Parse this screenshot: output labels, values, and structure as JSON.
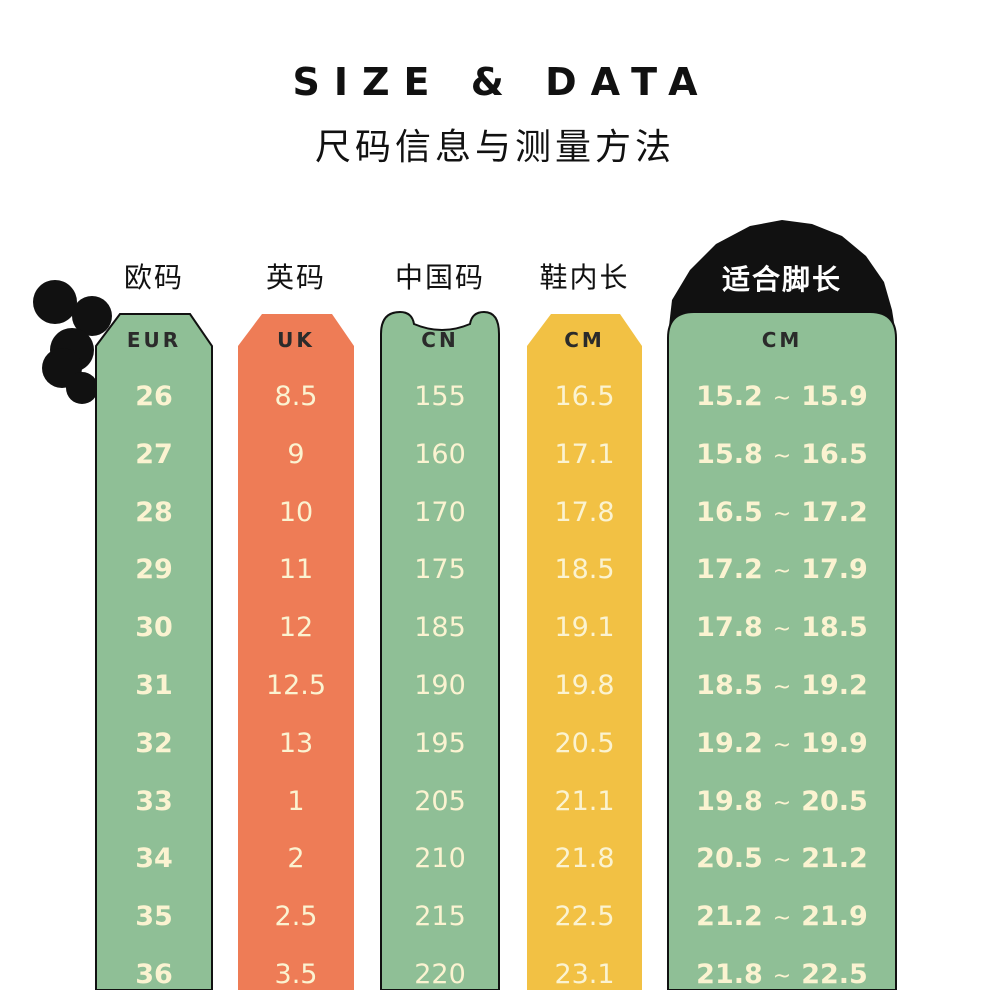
{
  "header": {
    "title_en": "SIZE & DATA",
    "title_cn": "尺码信息与测量方法"
  },
  "colors": {
    "green": "#8fbf96",
    "orange": "#ee7c56",
    "yellow": "#f2c144",
    "black": "#111111",
    "cell_text": "#fbf3d1"
  },
  "columns": {
    "eur": {
      "label": "欧码",
      "unit": "EUR",
      "values": [
        "26",
        "27",
        "28",
        "29",
        "30",
        "31",
        "32",
        "33",
        "34",
        "35",
        "36"
      ]
    },
    "uk": {
      "label": "英码",
      "unit": "UK",
      "values": [
        "8.5",
        "9",
        "10",
        "11",
        "12",
        "12.5",
        "13",
        "1",
        "2",
        "2.5",
        "3.5"
      ]
    },
    "cn": {
      "label": "中国码",
      "unit": "CN",
      "values": [
        "155",
        "160",
        "170",
        "175",
        "185",
        "190",
        "195",
        "205",
        "210",
        "215",
        "220"
      ]
    },
    "insole": {
      "label": "鞋内长",
      "unit": "CM",
      "values": [
        "16.5",
        "17.1",
        "17.8",
        "18.5",
        "19.1",
        "19.8",
        "20.5",
        "21.1",
        "21.8",
        "22.5",
        "23.1"
      ]
    },
    "fit": {
      "label": "适合脚长",
      "unit": "CM",
      "tilde": "~",
      "rows": [
        {
          "min": "15.2",
          "max": "15.9"
        },
        {
          "min": "15.8",
          "max": "16.5"
        },
        {
          "min": "16.5",
          "max": "17.2"
        },
        {
          "min": "17.2",
          "max": "17.9"
        },
        {
          "min": "17.8",
          "max": "18.5"
        },
        {
          "min": "18.5",
          "max": "19.2"
        },
        {
          "min": "19.2",
          "max": "19.9"
        },
        {
          "min": "19.8",
          "max": "20.5"
        },
        {
          "min": "20.5",
          "max": "21.2"
        },
        {
          "min": "21.2",
          "max": "21.9"
        },
        {
          "min": "21.8",
          "max": "22.5"
        }
      ]
    }
  }
}
